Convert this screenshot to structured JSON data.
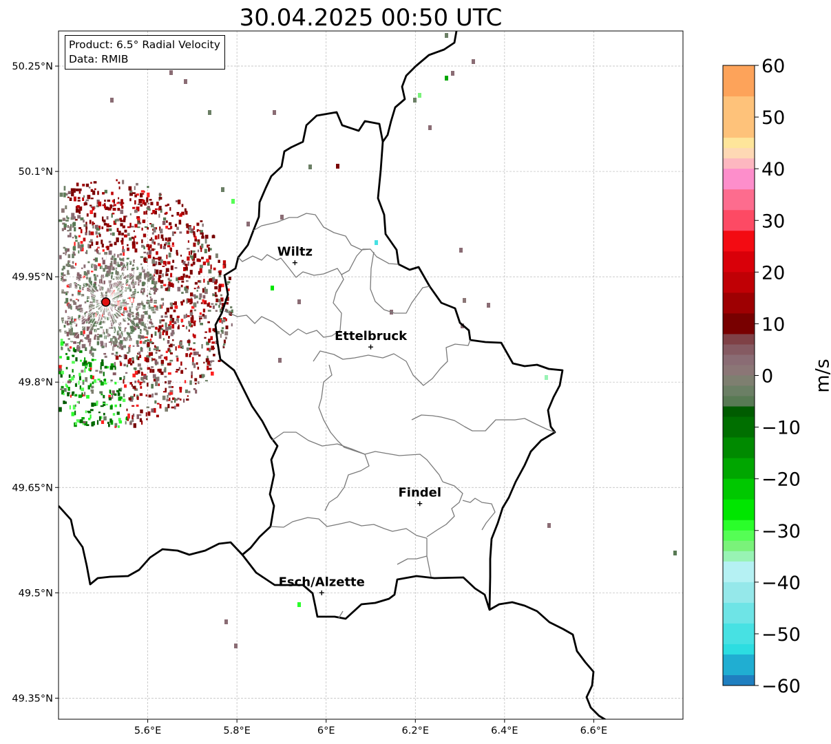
{
  "title": "30.04.2025 00:50 UTC",
  "info": {
    "product": "Product: 6.5° Radial Velocity",
    "data_source": "Data: RMIB"
  },
  "map": {
    "lon_range": [
      5.4,
      6.8
    ],
    "lat_range": [
      49.32,
      50.3
    ],
    "lon_ticks": [
      {
        "value": 5.6,
        "label": "5.6°E"
      },
      {
        "value": 5.8,
        "label": "5.8°E"
      },
      {
        "value": 6.0,
        "label": "6°E"
      },
      {
        "value": 6.2,
        "label": "6.2°E"
      },
      {
        "value": 6.4,
        "label": "6.4°E"
      },
      {
        "value": 6.6,
        "label": "6.6°E"
      }
    ],
    "lat_ticks": [
      {
        "value": 50.25,
        "label": "50.25°N"
      },
      {
        "value": 50.1,
        "label": "50.1°N"
      },
      {
        "value": 49.95,
        "label": "49.95°N"
      },
      {
        "value": 49.8,
        "label": "49.8°N"
      },
      {
        "value": 49.65,
        "label": "49.65°N"
      },
      {
        "value": 49.5,
        "label": "49.5°N"
      },
      {
        "value": 49.35,
        "label": "49.35°N"
      }
    ],
    "cities": [
      {
        "name": "Wiltz",
        "lon": 5.93,
        "lat": 49.97
      },
      {
        "name": "Ettelbruck",
        "lon": 6.1,
        "lat": 49.85
      },
      {
        "name": "Findel",
        "lon": 6.21,
        "lat": 49.627
      },
      {
        "name": "Esch/Alzette",
        "lon": 5.99,
        "lat": 49.5
      }
    ],
    "radar_site": {
      "lon": 5.506,
      "lat": 49.914
    }
  },
  "colorbar": {
    "label": "m/s",
    "min": -60,
    "max": 60,
    "ticks": [
      {
        "value": 60,
        "label": "60"
      },
      {
        "value": 50,
        "label": "50"
      },
      {
        "value": 40,
        "label": "40"
      },
      {
        "value": 30,
        "label": "30"
      },
      {
        "value": 20,
        "label": "20"
      },
      {
        "value": 10,
        "label": "10"
      },
      {
        "value": 0,
        "label": "0"
      },
      {
        "value": -10,
        "label": "−10"
      },
      {
        "value": -20,
        "label": "−20"
      },
      {
        "value": -30,
        "label": "−30"
      },
      {
        "value": -40,
        "label": "−40"
      },
      {
        "value": -50,
        "label": "−50"
      },
      {
        "value": -60,
        "label": "−60"
      }
    ],
    "bands": [
      {
        "from": 54,
        "to": 60,
        "color": "#fda35a"
      },
      {
        "from": 46,
        "to": 54,
        "color": "#fec27a"
      },
      {
        "from": 44,
        "to": 46,
        "color": "#fee59a"
      },
      {
        "from": 42,
        "to": 44,
        "color": "#fed8b4"
      },
      {
        "from": 40,
        "to": 42,
        "color": "#fdb7c0"
      },
      {
        "from": 36,
        "to": 40,
        "color": "#fd8ecb"
      },
      {
        "from": 32,
        "to": 36,
        "color": "#fd6c8e"
      },
      {
        "from": 28,
        "to": 32,
        "color": "#fd4a64"
      },
      {
        "from": 24,
        "to": 28,
        "color": "#f30b12"
      },
      {
        "from": 20,
        "to": 24,
        "color": "#d90009"
      },
      {
        "from": 16,
        "to": 20,
        "color": "#c00005"
      },
      {
        "from": 12,
        "to": 16,
        "color": "#9e0002"
      },
      {
        "from": 8,
        "to": 12,
        "color": "#780000"
      },
      {
        "from": 6,
        "to": 8,
        "color": "#7f4146"
      },
      {
        "from": 4,
        "to": 6,
        "color": "#855a62"
      },
      {
        "from": 2,
        "to": 4,
        "color": "#8a6c74"
      },
      {
        "from": 0,
        "to": 2,
        "color": "#8b7676"
      },
      {
        "from": -2,
        "to": 0,
        "color": "#7e7f70"
      },
      {
        "from": -4,
        "to": -2,
        "color": "#6b7f65"
      },
      {
        "from": -6,
        "to": -4,
        "color": "#587a54"
      },
      {
        "from": -8,
        "to": -6,
        "color": "#005c00"
      },
      {
        "from": -12,
        "to": -8,
        "color": "#006f00"
      },
      {
        "from": -16,
        "to": -12,
        "color": "#008a00"
      },
      {
        "from": -20,
        "to": -16,
        "color": "#00a600"
      },
      {
        "from": -24,
        "to": -20,
        "color": "#00c800"
      },
      {
        "from": -28,
        "to": -24,
        "color": "#00e600"
      },
      {
        "from": -30,
        "to": -28,
        "color": "#2afe2a"
      },
      {
        "from": -32,
        "to": -30,
        "color": "#55fe55"
      },
      {
        "from": -34,
        "to": -32,
        "color": "#7af27a"
      },
      {
        "from": -36,
        "to": -34,
        "color": "#98f3b4"
      },
      {
        "from": -40,
        "to": -36,
        "color": "#b5f1f3"
      },
      {
        "from": -44,
        "to": -40,
        "color": "#95e8ea"
      },
      {
        "from": -48,
        "to": -44,
        "color": "#6ee4e6"
      },
      {
        "from": -52,
        "to": -48,
        "color": "#47e1e3"
      },
      {
        "from": -54,
        "to": -52,
        "color": "#2cdde1"
      },
      {
        "from": -58,
        "to": -54,
        "color": "#20aed2"
      },
      {
        "from": -60,
        "to": -58,
        "color": "#1f7fc0"
      }
    ]
  }
}
